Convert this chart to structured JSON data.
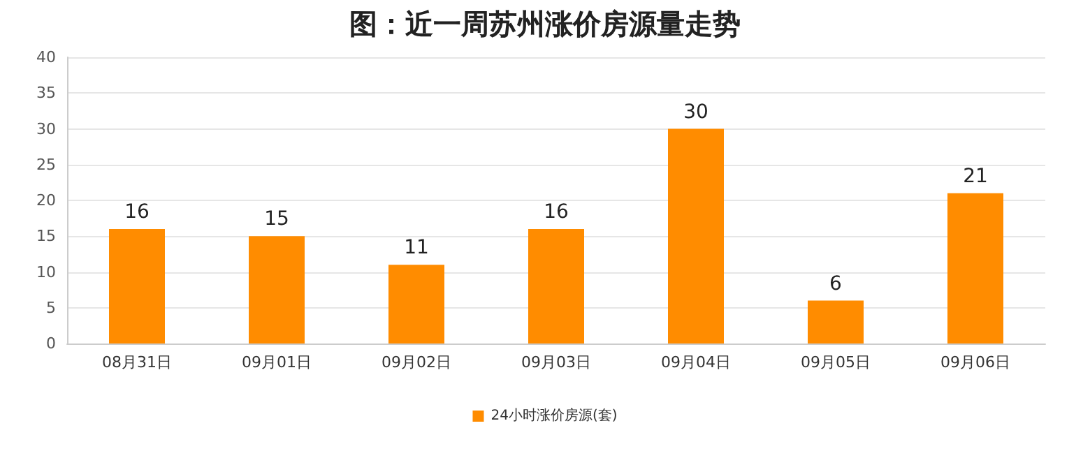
{
  "chart_data": {
    "type": "bar",
    "title": "图：近一周苏州涨价房源量走势",
    "categories": [
      "08月31日",
      "09月01日",
      "09月02日",
      "09月03日",
      "09月04日",
      "09月05日",
      "09月06日"
    ],
    "series": [
      {
        "name": "24小时涨价房源(套)",
        "color": "#ff8c00",
        "values": [
          16,
          15,
          11,
          16,
          30,
          6,
          21
        ]
      }
    ],
    "ylim": [
      0,
      40
    ],
    "yticks": [
      0,
      5,
      10,
      15,
      20,
      25,
      30,
      35,
      40
    ],
    "grid": "y",
    "legend": "bottom",
    "data_labels": true
  }
}
